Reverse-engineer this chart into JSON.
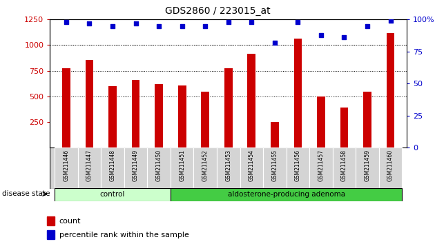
{
  "title": "GDS2860 / 223015_at",
  "samples": [
    "GSM211446",
    "GSM211447",
    "GSM211448",
    "GSM211449",
    "GSM211450",
    "GSM211451",
    "GSM211452",
    "GSM211453",
    "GSM211454",
    "GSM211455",
    "GSM211456",
    "GSM211457",
    "GSM211458",
    "GSM211459",
    "GSM211460"
  ],
  "counts": [
    775,
    855,
    600,
    660,
    620,
    605,
    545,
    775,
    915,
    250,
    1065,
    500,
    390,
    545,
    1115
  ],
  "percentile_ranks": [
    98,
    97,
    95,
    97,
    95,
    95,
    95,
    98,
    98,
    82,
    98,
    88,
    86,
    95,
    99
  ],
  "groups": [
    {
      "label": "control",
      "start": 0,
      "end": 5,
      "color": "#ccffcc"
    },
    {
      "label": "aldosterone-producing adenoma",
      "start": 5,
      "end": 15,
      "color": "#44cc44"
    }
  ],
  "bar_color": "#cc0000",
  "dot_color": "#0000cc",
  "ylim_left": [
    0,
    1250
  ],
  "ylim_right": [
    0,
    100
  ],
  "yticks_left": [
    250,
    500,
    750,
    1000,
    1250
  ],
  "yticks_right": [
    0,
    25,
    50,
    75,
    100
  ],
  "grid_values": [
    500,
    750,
    1000
  ],
  "left_axis_color": "#cc0000",
  "right_axis_color": "#0000cc",
  "disease_state_label": "disease state",
  "legend_count_label": "count",
  "legend_percentile_label": "percentile rank within the sample"
}
